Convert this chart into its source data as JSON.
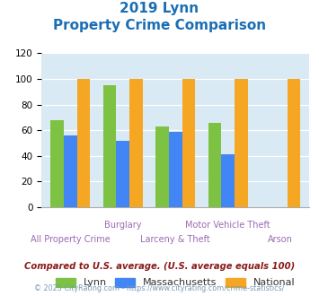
{
  "title_line1": "2019 Lynn",
  "title_line2": "Property Crime Comparison",
  "categories": [
    "All Property Crime",
    "Burglary",
    "Larceny & Theft",
    "Motor Vehicle Theft",
    "Arson"
  ],
  "lynn": [
    68,
    95,
    63,
    66,
    0
  ],
  "massachusetts": [
    56,
    52,
    59,
    41,
    0
  ],
  "national": [
    100,
    100,
    100,
    100,
    100
  ],
  "lynn_color": "#7dc242",
  "mass_color": "#4285f4",
  "natl_color": "#f5a623",
  "bg_color": "#daeaf4",
  "ylim": [
    0,
    120
  ],
  "yticks": [
    0,
    20,
    40,
    60,
    80,
    100,
    120
  ],
  "xlabel_top": [
    "",
    "Burglary",
    "",
    "Motor Vehicle Theft",
    ""
  ],
  "xlabel_bot": [
    "All Property Crime",
    "",
    "Larceny & Theft",
    "",
    "Arson"
  ],
  "label_color": "#9b6bb5",
  "footnote1": "Compared to U.S. average. (U.S. average equals 100)",
  "footnote2": "© 2025 CityRating.com - https://www.cityrating.com/crime-statistics/",
  "title_color": "#1a6eb5",
  "footnote1_color": "#8b1a1a",
  "footnote2_color": "#7a9ab5"
}
